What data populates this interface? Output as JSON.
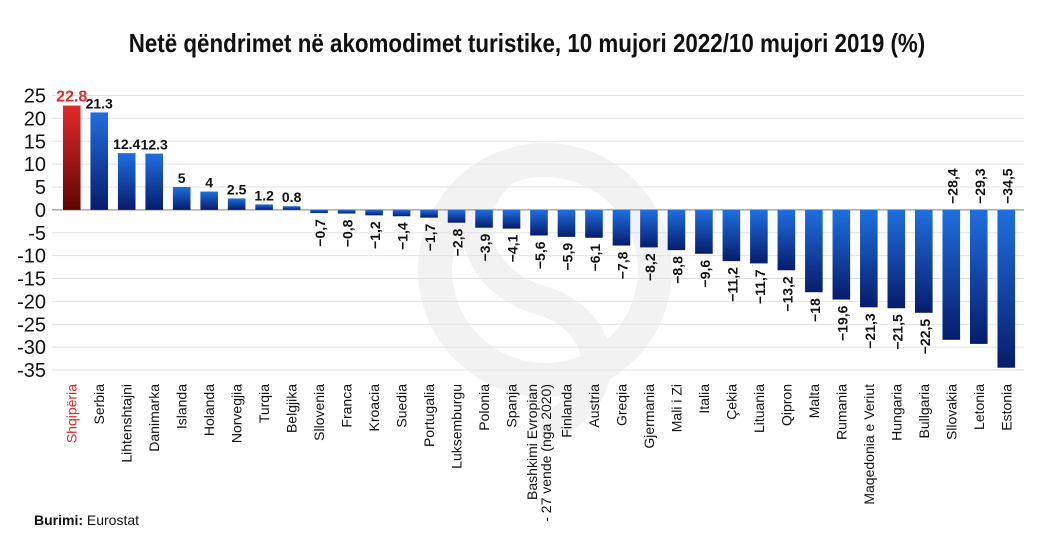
{
  "chart_data": {
    "type": "bar",
    "title": "Netë qëndrimet në akomodimet turistike, 10 mujori 2022/10 mujori 2019 (%)",
    "xlabel": "",
    "ylabel": "",
    "ylim": [
      -35,
      25
    ],
    "yticks": [
      25,
      20,
      15,
      10,
      5,
      0,
      -5,
      -10,
      -15,
      -20,
      -25,
      -30,
      -35
    ],
    "grid": true,
    "categories": [
      "Shqipëria",
      "Serbia",
      "Lihtenshtajni",
      "Danimarka",
      "Islanda",
      "Holanda",
      "Norvegjia",
      "Turqia",
      "Belgjika",
      "Sllovenia",
      "Franca",
      "Kroacia",
      "Suedia",
      "Portugalia",
      "Luksemburgu",
      "Polonia",
      "Spanja",
      "Bashkimi Evropian - 27 vende (nga 2020)",
      "Finlanda",
      "Austria",
      "Greqia",
      "Gjermania",
      "Mali i Zi",
      "Italia",
      "Çekia",
      "Lituania",
      "Qipron",
      "Malta",
      "Rumania",
      "Maqedonia e Veriut",
      "Hungaria",
      "Bullgaria",
      "Sllovakia",
      "Letonia",
      "Estonia"
    ],
    "values": [
      22.8,
      21.3,
      12.4,
      12.3,
      5,
      4,
      2.5,
      1.2,
      0.8,
      -0.7,
      -0.8,
      -1.2,
      -1.4,
      -1.7,
      -2.8,
      -3.9,
      -4.1,
      -5.6,
      -5.9,
      -6.1,
      -7.8,
      -8.2,
      -8.8,
      -9.6,
      -11.2,
      -11.7,
      -13.2,
      -18,
      -19.6,
      -21.3,
      -21.5,
      -22.5,
      -28.4,
      -29.3,
      -34.5
    ],
    "value_labels": [
      "22.8",
      "21.3",
      "12.4",
      "12.3",
      "5",
      "4",
      "2.5",
      "1.2",
      "0.8",
      "−0,7",
      "−0,8",
      "−1,2",
      "−1,4",
      "−1,7",
      "−2,8",
      "−3,9",
      "−4,1",
      "−5,6",
      "−5,9",
      "−6,1",
      "−7,8",
      "−8,2",
      "−8,8",
      "−9,6",
      "−11,2",
      "−11,7",
      "−13,2",
      "−18",
      "−19,6",
      "−21,3",
      "−21,5",
      "−22,5",
      "−28,4",
      "−29,3",
      "−34,5"
    ],
    "category_label_lines": [
      [
        "Shqipëria"
      ],
      [
        "Serbia"
      ],
      [
        "Lihtenshtajni"
      ],
      [
        "Danimarka"
      ],
      [
        "Islanda"
      ],
      [
        "Holanda"
      ],
      [
        "Norvegjia"
      ],
      [
        "Turqia"
      ],
      [
        "Belgjika"
      ],
      [
        "Sllovenia"
      ],
      [
        "Franca"
      ],
      [
        "Kroacia"
      ],
      [
        "Suedia"
      ],
      [
        "Portugalia"
      ],
      [
        "Luksemburgu"
      ],
      [
        "Polonia"
      ],
      [
        "Spanja"
      ],
      [
        "Bashkimi Evropian",
        "- 27 vende (nga 2020)"
      ],
      [
        "Finlanda"
      ],
      [
        "Austria"
      ],
      [
        "Greqia"
      ],
      [
        "Gjermania"
      ],
      [
        "Mali i Zi"
      ],
      [
        "Italia"
      ],
      [
        "Çekia"
      ],
      [
        "Lituania"
      ],
      [
        "Qipron"
      ],
      [
        "Malta"
      ],
      [
        "Rumania"
      ],
      [
        "Maqedonia e Veriut"
      ],
      [
        "Hungaria"
      ],
      [
        "Bullgaria"
      ],
      [
        "Sllovakia"
      ],
      [
        "Letonia"
      ],
      [
        "Estonia"
      ]
    ],
    "highlight_index": 0,
    "colors": {
      "highlight": "#e0282e",
      "highlight_bar": "#8b0b0b",
      "bar": "#0c2f9e",
      "text": "#111111"
    }
  },
  "source": {
    "label": "Burimi:",
    "text": " Eurostat"
  }
}
